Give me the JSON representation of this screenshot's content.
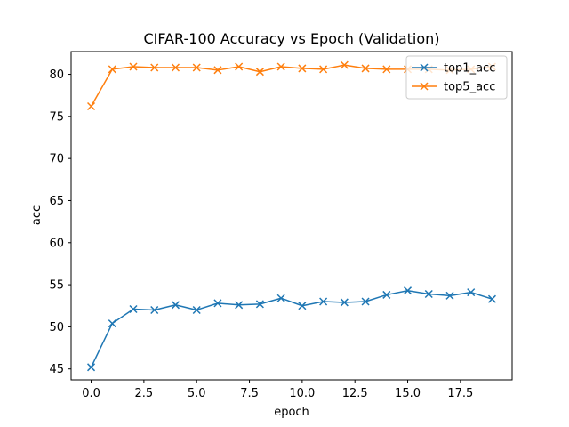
{
  "chart_data": {
    "type": "line",
    "title": "CIFAR-100 Accuracy vs Epoch (Validation)",
    "xlabel": "epoch",
    "ylabel": "acc",
    "xlim": [
      -0.95,
      19.95
    ],
    "ylim": [
      43.7,
      82.7
    ],
    "xticks": [
      0.0,
      2.5,
      5.0,
      7.5,
      10.0,
      12.5,
      15.0,
      17.5
    ],
    "xtick_labels": [
      "0.0",
      "2.5",
      "5.0",
      "7.5",
      "10.0",
      "12.5",
      "15.0",
      "17.5"
    ],
    "yticks": [
      45,
      50,
      55,
      60,
      65,
      70,
      75,
      80
    ],
    "ytick_labels": [
      "45",
      "50",
      "55",
      "60",
      "65",
      "70",
      "75",
      "80"
    ],
    "grid": false,
    "legend_position": "top-right",
    "marker": "x",
    "x": [
      0,
      1,
      2,
      3,
      4,
      5,
      6,
      7,
      8,
      9,
      10,
      11,
      12,
      13,
      14,
      15,
      16,
      17,
      18,
      19
    ],
    "series": [
      {
        "name": "top1_acc",
        "color": "#1f77b4",
        "values": [
          45.2,
          50.4,
          52.1,
          52.0,
          52.6,
          52.0,
          52.8,
          52.6,
          52.7,
          53.4,
          52.5,
          53.0,
          52.9,
          53.0,
          53.8,
          54.3,
          53.9,
          53.7,
          54.1,
          53.3
        ]
      },
      {
        "name": "top5_acc",
        "color": "#ff7f0e",
        "values": [
          76.2,
          80.6,
          80.9,
          80.8,
          80.8,
          80.8,
          80.5,
          80.9,
          80.3,
          80.9,
          80.7,
          80.6,
          81.1,
          80.7,
          80.6,
          80.6,
          80.6,
          80.5,
          80.6,
          80.9
        ]
      }
    ]
  }
}
